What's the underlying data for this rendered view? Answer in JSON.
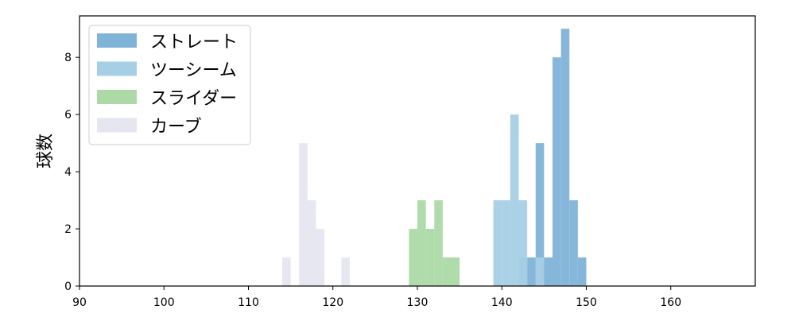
{
  "chart_data": {
    "type": "histogram",
    "ylabel": "球数",
    "xlabel": "",
    "xlim": [
      90,
      170
    ],
    "ylim": [
      0,
      9.45
    ],
    "xticks": [
      90,
      100,
      110,
      120,
      130,
      140,
      150,
      160
    ],
    "yticks": [
      0,
      2,
      4,
      6,
      8
    ],
    "grid": false,
    "legend_position": "top-left",
    "series": [
      {
        "name": "ストレート",
        "color": "#7fb3d8",
        "bins": [
          {
            "x0": 142.0,
            "x1": 143.0,
            "count": 1
          },
          {
            "x0": 143.0,
            "x1": 144.0,
            "count": 1
          },
          {
            "x0": 144.0,
            "x1": 145.0,
            "count": 5
          },
          {
            "x0": 145.0,
            "x1": 146.0,
            "count": 1
          },
          {
            "x0": 146.0,
            "x1": 147.0,
            "count": 8
          },
          {
            "x0": 147.0,
            "x1": 148.0,
            "count": 9
          },
          {
            "x0": 148.0,
            "x1": 149.0,
            "count": 3
          },
          {
            "x0": 149.0,
            "x1": 150.0,
            "count": 1
          }
        ]
      },
      {
        "name": "ツーシーム",
        "color": "#a6cfe6",
        "bins": [
          {
            "x0": 139.0,
            "x1": 140.0,
            "count": 3
          },
          {
            "x0": 140.0,
            "x1": 141.0,
            "count": 3
          },
          {
            "x0": 141.0,
            "x1": 142.0,
            "count": 6
          },
          {
            "x0": 142.0,
            "x1": 143.0,
            "count": 3
          },
          {
            "x0": 144.0,
            "x1": 145.0,
            "count": 1
          }
        ]
      },
      {
        "name": "スライダー",
        "color": "#acd9a6",
        "bins": [
          {
            "x0": 129.0,
            "x1": 130.0,
            "count": 2
          },
          {
            "x0": 130.0,
            "x1": 131.0,
            "count": 3
          },
          {
            "x0": 131.0,
            "x1": 132.0,
            "count": 2
          },
          {
            "x0": 132.0,
            "x1": 133.0,
            "count": 3
          },
          {
            "x0": 133.0,
            "x1": 134.0,
            "count": 1
          },
          {
            "x0": 134.0,
            "x1": 135.0,
            "count": 1
          }
        ]
      },
      {
        "name": "カーブ",
        "color": "#e6e6f1",
        "bins": [
          {
            "x0": 114.0,
            "x1": 115.0,
            "count": 1
          },
          {
            "x0": 116.0,
            "x1": 117.0,
            "count": 5
          },
          {
            "x0": 117.0,
            "x1": 118.0,
            "count": 3
          },
          {
            "x0": 118.0,
            "x1": 119.0,
            "count": 2
          },
          {
            "x0": 121.0,
            "x1": 122.0,
            "count": 1
          }
        ]
      }
    ]
  }
}
